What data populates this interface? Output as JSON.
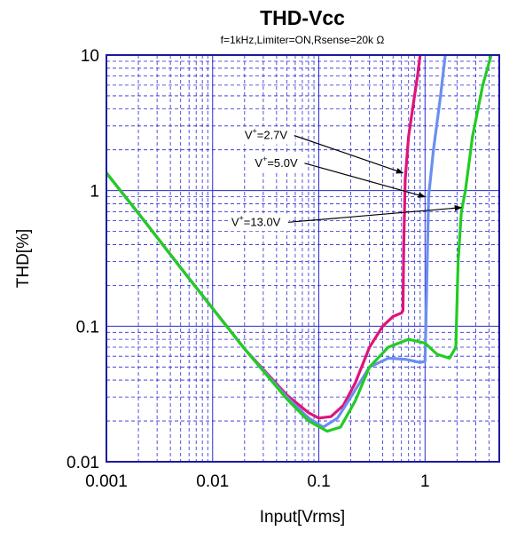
{
  "chart_data": {
    "type": "line",
    "title": "THD-Vcc",
    "subtitle": "f=1kHz,Limiter=ON,Rsense=20k Ω",
    "xlabel": "Input[Vrms]",
    "ylabel": "THD[%]",
    "x_scale": "log",
    "y_scale": "log",
    "xlim": [
      0.001,
      5
    ],
    "ylim": [
      0.01,
      10
    ],
    "x_ticks": [
      {
        "value": 0.001,
        "label": "0.001"
      },
      {
        "value": 0.01,
        "label": "0.01"
      },
      {
        "value": 0.1,
        "label": "0.1"
      },
      {
        "value": 1,
        "label": "1"
      }
    ],
    "y_ticks": [
      {
        "value": 0.01,
        "label": "0.01"
      },
      {
        "value": 0.1,
        "label": "0.1"
      },
      {
        "value": 1,
        "label": "1"
      },
      {
        "value": 10,
        "label": "10"
      }
    ],
    "grid": true,
    "series": [
      {
        "name": "V⁺=2.7V",
        "color": "#e0137a",
        "points": [
          [
            0.001,
            1.35
          ],
          [
            0.002,
            0.68
          ],
          [
            0.005,
            0.27
          ],
          [
            0.01,
            0.135
          ],
          [
            0.02,
            0.068
          ],
          [
            0.05,
            0.031
          ],
          [
            0.08,
            0.023
          ],
          [
            0.1,
            0.021
          ],
          [
            0.13,
            0.0215
          ],
          [
            0.17,
            0.026
          ],
          [
            0.22,
            0.038
          ],
          [
            0.3,
            0.07
          ],
          [
            0.4,
            0.1
          ],
          [
            0.5,
            0.118
          ],
          [
            0.6,
            0.125
          ],
          [
            0.62,
            0.13
          ],
          [
            0.63,
            0.4
          ],
          [
            0.65,
            1.2
          ],
          [
            0.7,
            2.5
          ],
          [
            0.78,
            4.5
          ],
          [
            0.85,
            7
          ],
          [
            0.9,
            10
          ]
        ]
      },
      {
        "name": "V⁺=5.0V",
        "color": "#6b8ef2",
        "points": [
          [
            0.001,
            1.35
          ],
          [
            0.002,
            0.68
          ],
          [
            0.005,
            0.27
          ],
          [
            0.01,
            0.135
          ],
          [
            0.02,
            0.068
          ],
          [
            0.05,
            0.03
          ],
          [
            0.08,
            0.021
          ],
          [
            0.11,
            0.018
          ],
          [
            0.15,
            0.021
          ],
          [
            0.2,
            0.03
          ],
          [
            0.3,
            0.05
          ],
          [
            0.45,
            0.058
          ],
          [
            0.65,
            0.057
          ],
          [
            0.9,
            0.054
          ],
          [
            1.0,
            0.055
          ],
          [
            1.03,
            0.15
          ],
          [
            1.08,
            0.9
          ],
          [
            1.2,
            2.0
          ],
          [
            1.4,
            5.0
          ],
          [
            1.55,
            10
          ]
        ]
      },
      {
        "name": "V⁺=13.0V",
        "color": "#22cc22",
        "points": [
          [
            0.001,
            1.35
          ],
          [
            0.002,
            0.68
          ],
          [
            0.005,
            0.27
          ],
          [
            0.01,
            0.135
          ],
          [
            0.02,
            0.068
          ],
          [
            0.05,
            0.029
          ],
          [
            0.08,
            0.02
          ],
          [
            0.12,
            0.0168
          ],
          [
            0.16,
            0.018
          ],
          [
            0.22,
            0.028
          ],
          [
            0.3,
            0.05
          ],
          [
            0.45,
            0.07
          ],
          [
            0.7,
            0.08
          ],
          [
            1.0,
            0.075
          ],
          [
            1.3,
            0.062
          ],
          [
            1.7,
            0.058
          ],
          [
            1.95,
            0.07
          ],
          [
            2.05,
            0.3
          ],
          [
            2.2,
            0.7
          ],
          [
            2.4,
            1.0
          ],
          [
            2.8,
            2.5
          ],
          [
            3.5,
            6.0
          ],
          [
            4.2,
            10
          ]
        ]
      }
    ],
    "annotations": [
      {
        "label": "V",
        "sup": "+",
        "rest": "=2.7V",
        "x": 0.02,
        "y": 2.4,
        "target": [
          0.62,
          1.35
        ]
      },
      {
        "label": "V",
        "sup": "+",
        "rest": "=5.0V",
        "x": 0.025,
        "y": 1.5,
        "target": [
          1.0,
          0.9
        ]
      },
      {
        "label": "V",
        "sup": "+",
        "rest": "=13.0V",
        "x": 0.015,
        "y": 0.55,
        "target": [
          2.2,
          0.75
        ]
      }
    ],
    "legend": "none"
  }
}
